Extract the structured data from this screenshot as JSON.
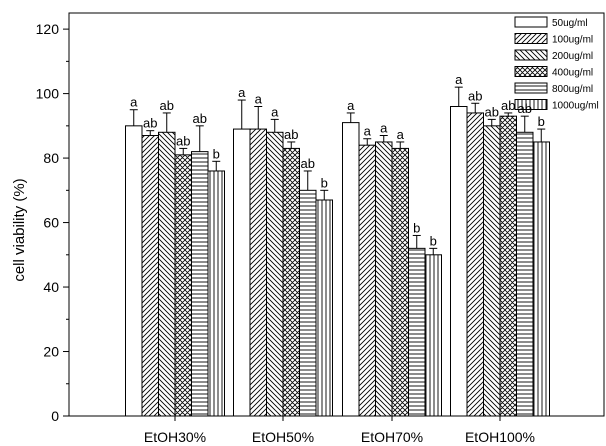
{
  "chart_data": {
    "type": "bar",
    "title": "",
    "xlabel": "",
    "ylabel": "cell viability (%)",
    "ylim": [
      0,
      125
    ],
    "yticks": [
      0,
      20,
      40,
      60,
      80,
      100,
      120
    ],
    "categories": [
      "EtOH30%",
      "EtOH50%",
      "EtOH70%",
      "EtOH100%"
    ],
    "legend_position": "top-right",
    "series": [
      {
        "name": "50ug/ml",
        "pattern": "blank",
        "values": [
          90,
          89,
          91,
          96
        ],
        "errors": [
          5,
          9,
          3,
          6
        ],
        "labels": [
          "a",
          "a",
          "a",
          "a"
        ]
      },
      {
        "name": "100ug/ml",
        "pattern": "diag-right",
        "values": [
          87,
          89,
          84,
          94
        ],
        "errors": [
          1.5,
          7,
          2,
          3
        ],
        "labels": [
          "ab",
          "a",
          "a",
          "ab"
        ]
      },
      {
        "name": "200ug/ml",
        "pattern": "diag-left",
        "values": [
          88,
          88,
          85,
          90
        ],
        "errors": [
          6,
          4,
          2,
          2
        ],
        "labels": [
          "ab",
          "a",
          "a",
          "ab"
        ]
      },
      {
        "name": "400ug/ml",
        "pattern": "crosshatch",
        "values": [
          81,
          83,
          83,
          93
        ],
        "errors": [
          2,
          2,
          2,
          1
        ],
        "labels": [
          "ab",
          "ab",
          "a",
          "ab"
        ]
      },
      {
        "name": "800ug/ml",
        "pattern": "horizontal",
        "values": [
          82,
          70,
          52,
          88
        ],
        "errors": [
          8,
          6,
          4,
          5
        ],
        "labels": [
          "ab",
          "ab",
          "b",
          "ab"
        ]
      },
      {
        "name": "1000ug/ml",
        "pattern": "vertical",
        "values": [
          76,
          67,
          50,
          85
        ],
        "errors": [
          3,
          3,
          2,
          4
        ],
        "labels": [
          "b",
          "b",
          "b",
          "b"
        ]
      }
    ]
  }
}
